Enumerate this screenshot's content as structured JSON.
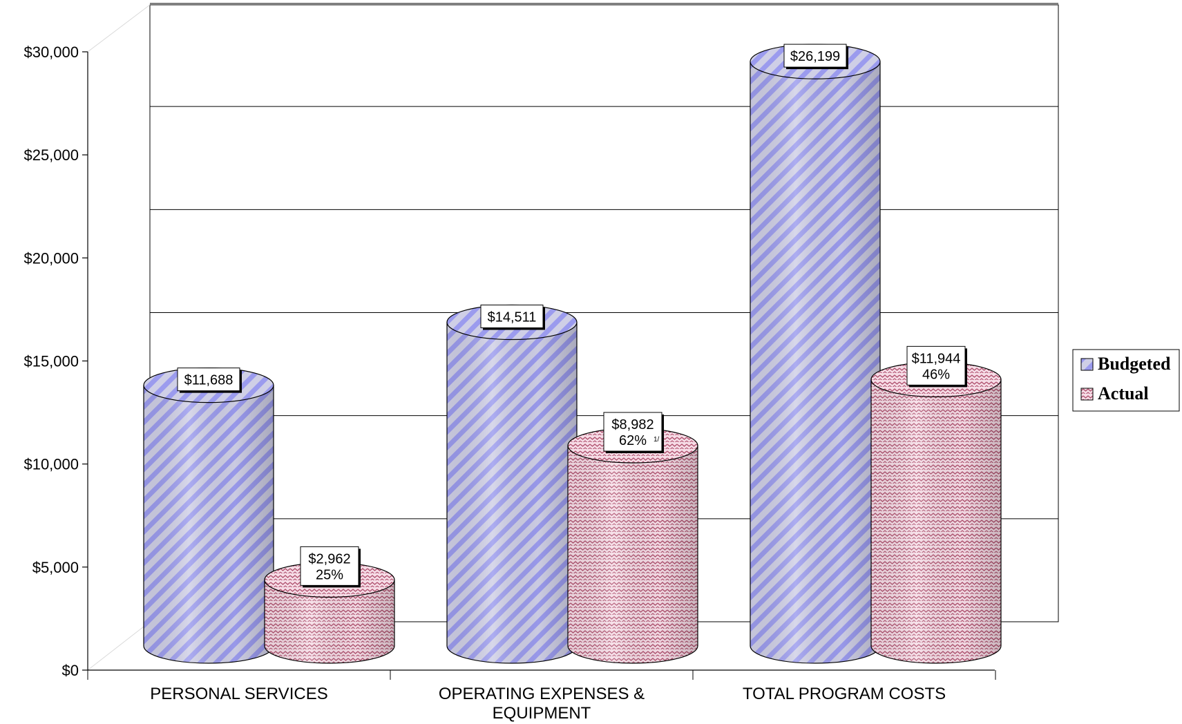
{
  "chart_data": {
    "type": "bar",
    "categories": [
      [
        "PERSONAL SERVICES"
      ],
      [
        "OPERATING EXPENSES &",
        "EQUIPMENT"
      ],
      [
        "TOTAL PROGRAM COSTS"
      ]
    ],
    "series": [
      {
        "name": "Budgeted",
        "color": "#9999ee",
        "values": [
          11688,
          14511,
          26199
        ],
        "labels": [
          [
            "$11,688"
          ],
          [
            "$14,511"
          ],
          [
            "$26,199"
          ]
        ]
      },
      {
        "name": "Actual",
        "color": "#bb5577",
        "values": [
          2962,
          8982,
          11944
        ],
        "labels": [
          [
            "$2,962",
            "25%"
          ],
          [
            "$8,982",
            "62%"
          ],
          [
            "$11,944",
            "46%"
          ]
        ]
      }
    ],
    "footnote": {
      "text": "1/",
      "category_index": 1,
      "series_index": 1
    },
    "y_ticks": [
      {
        "value": 0,
        "label": "$0"
      },
      {
        "value": 5000,
        "label": "$5,000"
      },
      {
        "value": 10000,
        "label": "$10,000"
      },
      {
        "value": 15000,
        "label": "$15,000"
      },
      {
        "value": 20000,
        "label": "$20,000"
      },
      {
        "value": 25000,
        "label": "$25,000"
      },
      {
        "value": 30000,
        "label": "$30,000"
      }
    ],
    "ylim": [
      0,
      30000
    ],
    "grid": true,
    "legend_position": "right",
    "title": "",
    "xlabel": "",
    "ylabel": ""
  }
}
